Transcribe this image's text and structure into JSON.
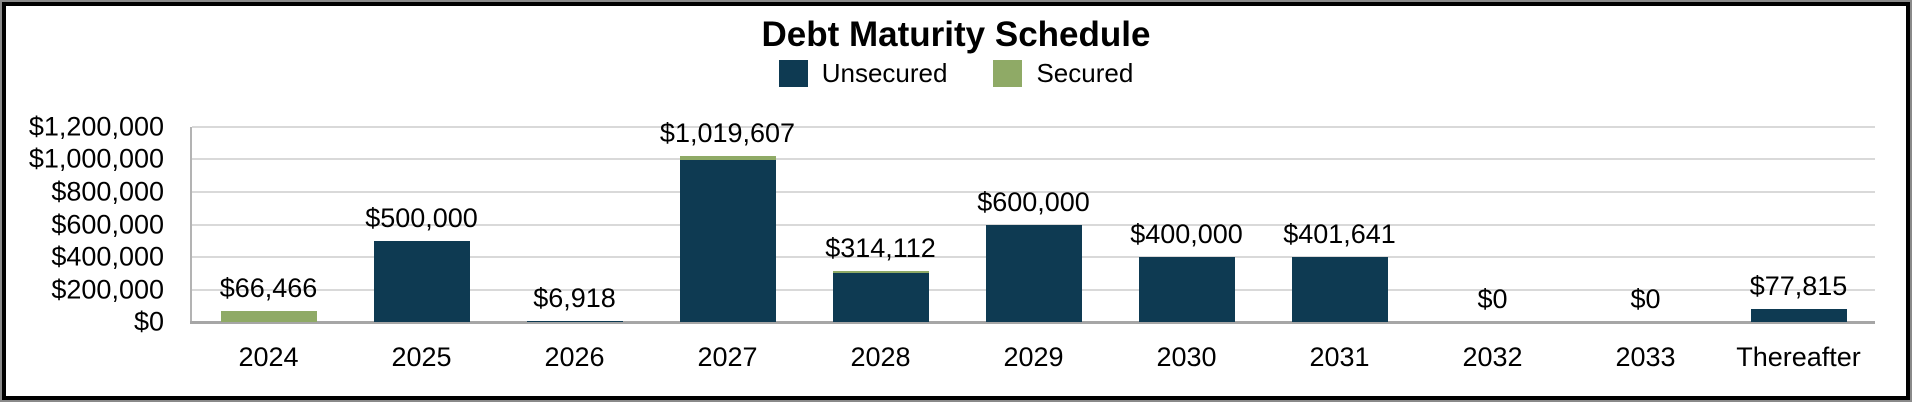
{
  "chart_data": {
    "type": "bar",
    "stacked": true,
    "title": "Debt Maturity Schedule",
    "categories": [
      "2024",
      "2025",
      "2026",
      "2027",
      "2028",
      "2029",
      "2030",
      "2031",
      "2032",
      "2033",
      "Thereafter"
    ],
    "series": [
      {
        "name": "Unsecured",
        "color": "#0E3A52",
        "values": [
          0,
          500000,
          6918,
          994607,
          302112,
          600000,
          400000,
          401641,
          0,
          0,
          77815
        ]
      },
      {
        "name": "Secured",
        "color": "#8FAA66",
        "values": [
          66466,
          0,
          0,
          25000,
          12000,
          0,
          0,
          0,
          0,
          0,
          0
        ]
      }
    ],
    "totals": [
      66466,
      500000,
      6918,
      1019607,
      314112,
      600000,
      400000,
      401641,
      0,
      0,
      77815
    ],
    "bar_labels": [
      "$66,466",
      "$500,000",
      "$6,918",
      "$1,019,607",
      "$314,112",
      "$600,000",
      "$400,000",
      "$401,641",
      "$0",
      "$0",
      "$77,815"
    ],
    "y_axis": {
      "ticks": [
        "$1,200,000",
        "$1,000,000",
        "$800,000",
        "$600,000",
        "$400,000",
        "$200,000",
        "$0"
      ],
      "min": 0,
      "max": 1200000
    },
    "xlabel": "",
    "ylabel": "",
    "grid": true,
    "legend": {
      "position": "top",
      "entries": [
        {
          "label": "Unsecured",
          "color": "#0E3A52"
        },
        {
          "label": "Secured",
          "color": "#8FAA66"
        }
      ]
    },
    "colors": {
      "gridline": "#D9D9D9",
      "axis_line": "#A6A6A6",
      "plot_border": "#B3B3B3",
      "frame_border": "#000000",
      "text": "#000000"
    }
  }
}
